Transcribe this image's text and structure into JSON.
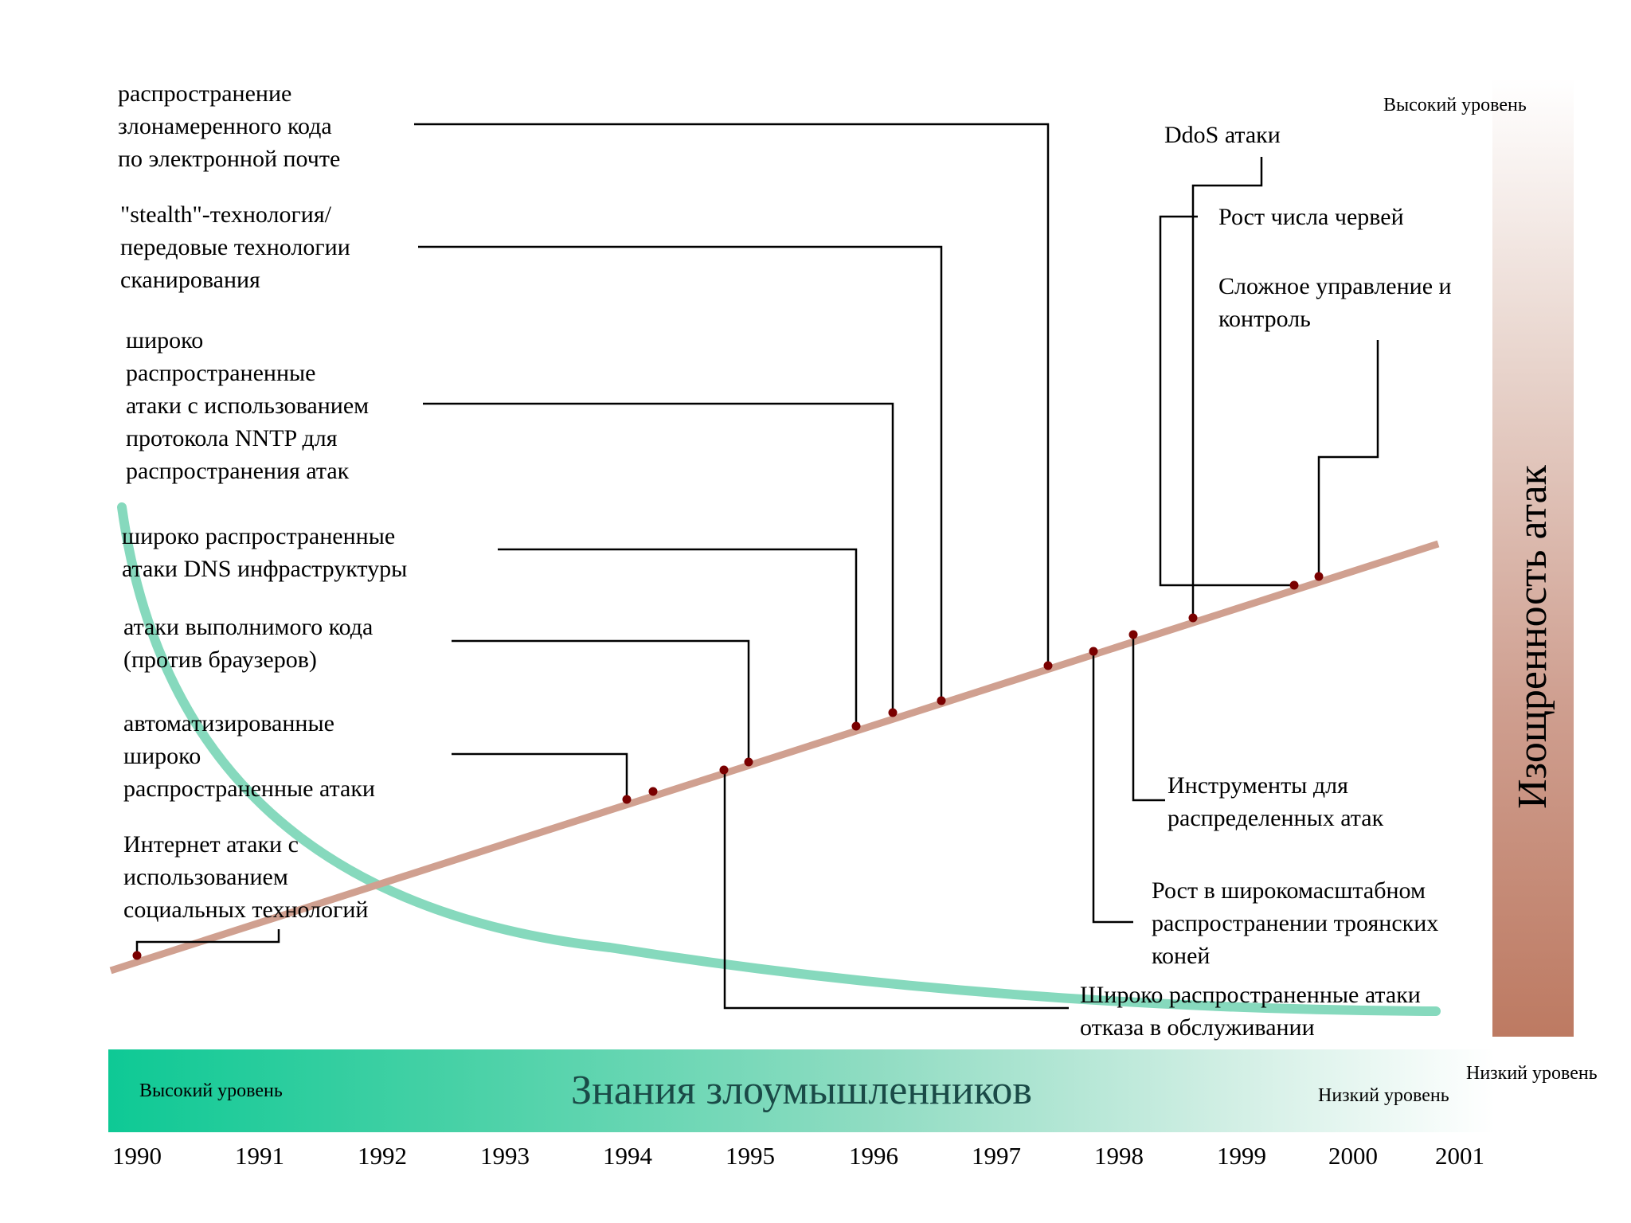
{
  "labels": {
    "email_malware": [
      "распространение",
      "злонамеренного кода",
      "по электронной почте"
    ],
    "stealth": [
      "\"stealth\"-технология/",
      "передовые технологии",
      "сканирования"
    ],
    "nntp": [
      "широко",
      "распространенные",
      "атаки с использованием",
      "протокола NNTP для",
      "распространения атак"
    ],
    "dns": [
      "широко распространенные",
      "атаки DNS инфраструктуры"
    ],
    "exec_code": [
      "атаки выполнимого кода",
      "(против браузеров)"
    ],
    "automated": [
      "автоматизированные",
      "широко",
      "распространенные атаки"
    ],
    "social": [
      "Интернет атаки с",
      "использованием",
      "социальных технологий"
    ],
    "ddos": [
      "DdoS атаки"
    ],
    "worms": [
      "Рост числа червей"
    ],
    "c2": [
      "Сложное управление и",
      "контроль"
    ],
    "dist_tools": [
      "Инструменты для",
      "распределенных атак"
    ],
    "trojans": [
      "Рост в широкомасштабном",
      "распространении троянских",
      "коней"
    ],
    "dos": [
      "Широко распространенные атаки",
      "отказа в обслуживании"
    ]
  },
  "knowledge_axis": {
    "title": "Знания злоумышленников",
    "left_label": "Высокий уровень",
    "right_label": "Низкий уровень",
    "colors": [
      "#0ec995",
      "#ffffff"
    ]
  },
  "sophistication_axis": {
    "title": "Изощренность атак",
    "top_label": "Высокий уровень",
    "bottom_label": "Низкий уровень",
    "colors": [
      "#ffffff",
      "#bd7a62"
    ]
  },
  "years": [
    "1990",
    "1991",
    "1992",
    "1993",
    "1994",
    "1995",
    "1996",
    "1997",
    "1998",
    "1999",
    "2000",
    "2001"
  ],
  "colors": {
    "sophistication_line": "#d0a090",
    "knowledge_curve": "#86d9bd",
    "marker": "#7a0000",
    "connector": "#000000"
  }
}
